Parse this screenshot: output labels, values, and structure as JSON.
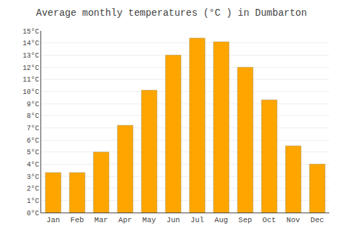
{
  "chart_data": {
    "type": "bar",
    "title": "Average monthly temperatures (°C ) in Dumbarton",
    "categories": [
      "Jan",
      "Feb",
      "Mar",
      "Apr",
      "May",
      "Jun",
      "Jul",
      "Aug",
      "Sep",
      "Oct",
      "Nov",
      "Dec"
    ],
    "values": [
      3.3,
      3.3,
      5.0,
      7.2,
      10.1,
      13.0,
      14.4,
      14.1,
      12.0,
      9.3,
      5.5,
      4.0
    ],
    "color": "#FFA500",
    "ylim": [
      0,
      15
    ],
    "yticks": [
      {
        "value": 0,
        "label": "0°C"
      },
      {
        "value": 1,
        "label": "1°C"
      },
      {
        "value": 2,
        "label": "2°C"
      },
      {
        "value": 3,
        "label": "3°C"
      },
      {
        "value": 4,
        "label": "4°C"
      },
      {
        "value": 5,
        "label": "5°C"
      },
      {
        "value": 6,
        "label": "6°C"
      },
      {
        "value": 7,
        "label": "7°C"
      },
      {
        "value": 8,
        "label": "8°C"
      },
      {
        "value": 9,
        "label": "9°C"
      },
      {
        "value": 10,
        "label": "10°C"
      },
      {
        "value": 11,
        "label": "11°C"
      },
      {
        "value": 12,
        "label": "12°C"
      },
      {
        "value": 13,
        "label": "13°C"
      },
      {
        "value": 14,
        "label": "14°C"
      },
      {
        "value": 15,
        "label": "15°C"
      }
    ],
    "grid": true
  }
}
